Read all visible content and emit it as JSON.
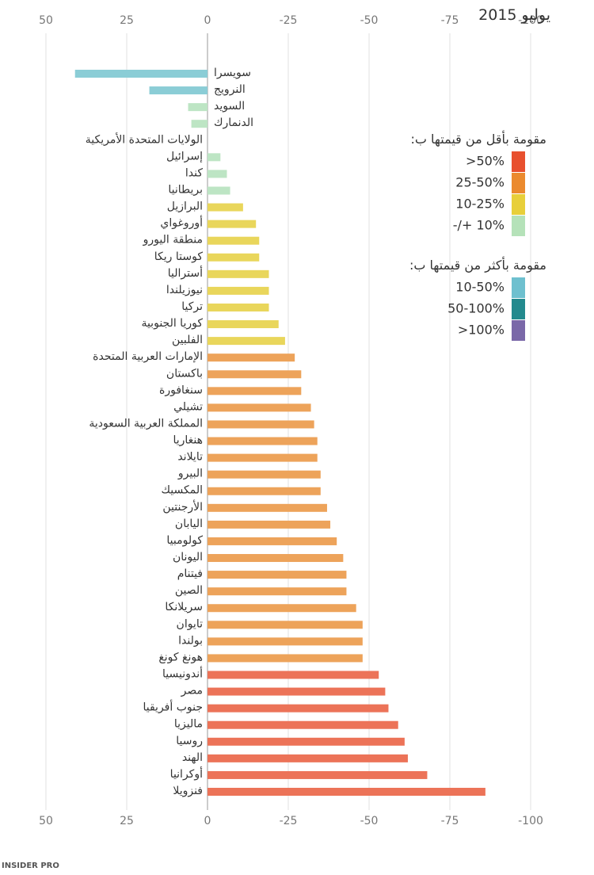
{
  "chart_data": {
    "type": "bar",
    "orientation": "horizontal",
    "title": "يوليو 2015",
    "categories": [
      "سويسرا",
      "النرويج",
      "السويد",
      "الدنمارك",
      "الولايات المتحدة الأمريكية",
      "إسرائيل",
      "كندا",
      "بريطانيا",
      "البرازيل",
      "أوروغواي",
      "منطقة اليورو",
      "كوستا ريكا",
      "أستراليا",
      "نيوزيلندا",
      "تركيا",
      "كوريا الجنوبية",
      "الفلبين",
      "الإمارات العربية المتحدة",
      "باكستان",
      "سنغافورة",
      "تشيلي",
      "المملكة العربية السعودية",
      "هنغاريا",
      "تايلاند",
      "البيرو",
      "المكسيك",
      "الأرجنتين",
      "اليابان",
      "كولومبيا",
      "اليونان",
      "فيتنام",
      "الصين",
      "سريلانكا",
      "تايوان",
      "بولندا",
      "هونغ كونغ",
      "أندونيسيا",
      "مصر",
      "جنوب أفريقيا",
      "ماليزيا",
      "روسيا",
      "الهند",
      "أوكرانيا",
      "فنزويلا"
    ],
    "values": [
      41,
      18,
      6,
      5,
      0,
      -4,
      -6,
      -7,
      -11,
      -15,
      -16,
      -16,
      -19,
      -19,
      -19,
      -22,
      -24,
      -27,
      -29,
      -29,
      -32,
      -33,
      -34,
      -34,
      -35,
      -35,
      -37,
      -38,
      -40,
      -42,
      -43,
      -43,
      -46,
      -48,
      -48,
      -48,
      -53,
      -55,
      -56,
      -59,
      -61,
      -62,
      -68,
      -86
    ],
    "colors": [
      "#8bcdd6",
      "#8bcdd6",
      "#bde5c4",
      "#bde5c4",
      "#bde5c4",
      "#bde5c4",
      "#bde5c4",
      "#bde5c4",
      "#e9d65b",
      "#e9d65b",
      "#e9d65b",
      "#e9d65b",
      "#e9d65b",
      "#e9d65b",
      "#e9d65b",
      "#e9d65b",
      "#e9d65b",
      "#eda35a",
      "#eda35a",
      "#eda35a",
      "#eda35a",
      "#eda35a",
      "#eda35a",
      "#eda35a",
      "#eda35a",
      "#eda35a",
      "#eda35a",
      "#eda35a",
      "#eda35a",
      "#eda35a",
      "#eda35a",
      "#eda35a",
      "#eda35a",
      "#eda35a",
      "#eda35a",
      "#eda35a",
      "#ec7358",
      "#ec7358",
      "#ec7358",
      "#ec7358",
      "#ec7358",
      "#ec7358",
      "#ec7358",
      "#ec7358"
    ],
    "xlim": [
      50,
      -100
    ],
    "xticks": [
      50,
      25,
      0,
      -25,
      -50,
      -75,
      -100
    ],
    "grid": true,
    "legend": [
      {
        "title": "مقومة بأقل من قيمتها ب:",
        "items": [
          {
            "label": ">50%",
            "color": "#e8502e"
          },
          {
            "label": "25-50%",
            "color": "#eb8a2e"
          },
          {
            "label": "10-25%",
            "color": "#e8cf3a"
          },
          {
            "label": "-/+ 10%",
            "color": "#b5e2b9"
          }
        ]
      },
      {
        "title": "مقومة بأكثر من قيمتها ب:",
        "items": [
          {
            "label": "10-50%",
            "color": "#6ec0cf"
          },
          {
            "label": "50-100%",
            "color": "#238a8e"
          },
          {
            "label": ">100%",
            "color": "#7a68a8"
          }
        ]
      }
    ],
    "source": "INSIDER PRO"
  }
}
